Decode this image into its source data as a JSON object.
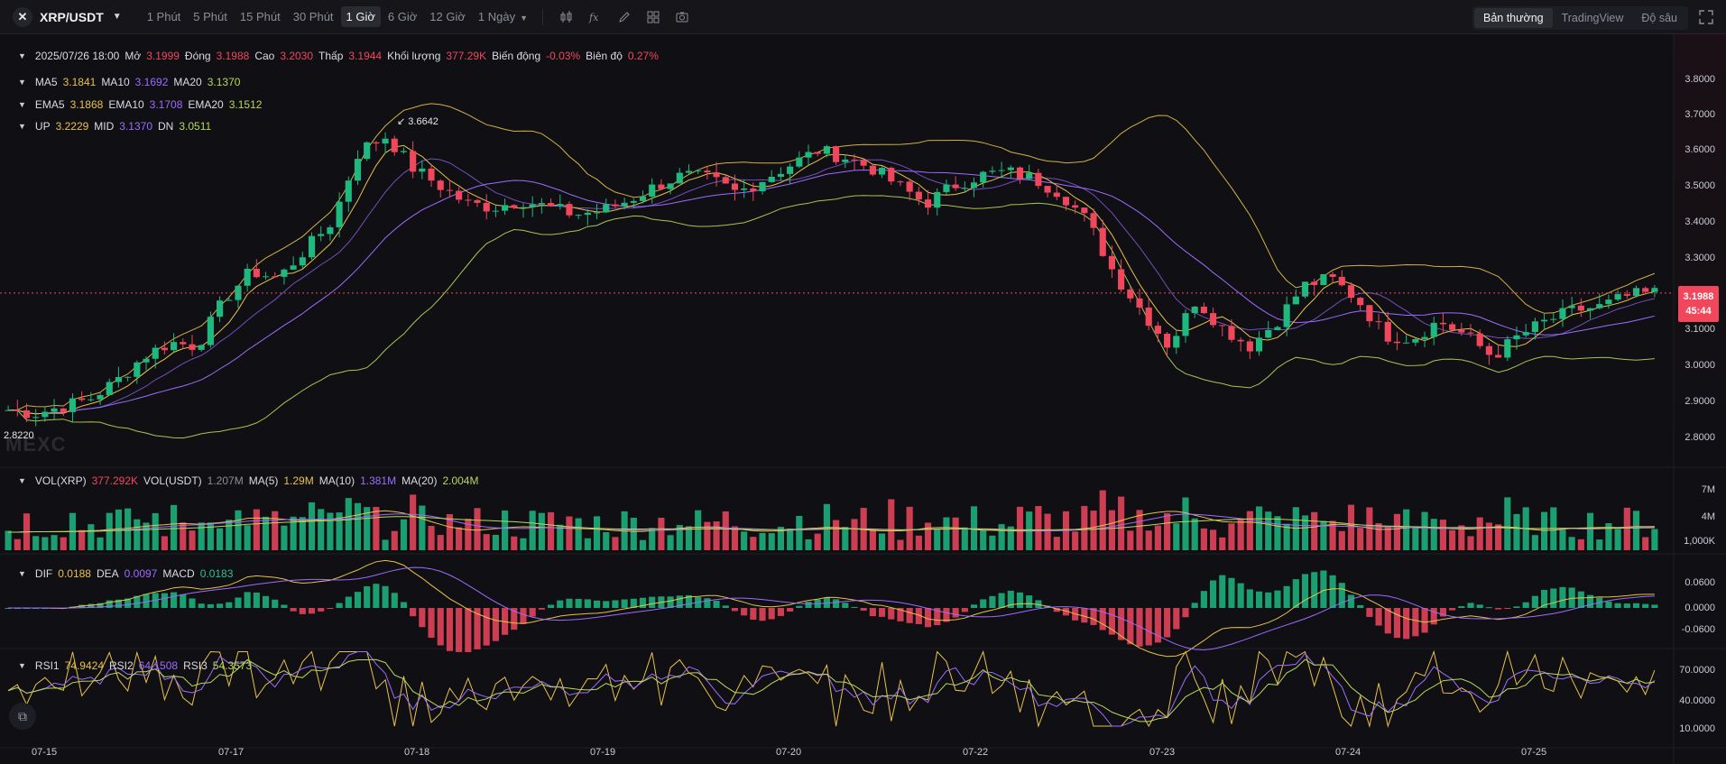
{
  "header": {
    "pair_icon": "x-logo-icon",
    "pair": "XRP/USDT",
    "intervals": [
      {
        "label": "1 Phút"
      },
      {
        "label": "5 Phút"
      },
      {
        "label": "15 Phút"
      },
      {
        "label": "30 Phút"
      },
      {
        "label": "1 Giờ"
      },
      {
        "label": "6 Giờ"
      },
      {
        "label": "12 Giờ"
      },
      {
        "label": "1 Ngày"
      }
    ],
    "active_interval": "1 Giờ",
    "views": [
      "Bản thường",
      "TradingView",
      "Độ sâu"
    ],
    "active_view": "Bản thường"
  },
  "ohlc": {
    "datetime": "2025/07/26 18:00",
    "open_label": "Mở",
    "open": "3.1999",
    "close_label": "Đóng",
    "close": "3.1988",
    "high_label": "Cao",
    "high": "3.2030",
    "low_label": "Thấp",
    "low": "3.1944",
    "volume_label": "Khối lượng",
    "volume": "377.29K",
    "change_label": "Biến động",
    "change": "-0.03%",
    "amplitude_label": "Biên độ",
    "amplitude": "0.27%"
  },
  "ma": {
    "ma5_label": "MA5",
    "ma5": "3.1841",
    "ma10_label": "MA10",
    "ma10": "3.1692",
    "ma20_label": "MA20",
    "ma20": "3.1370"
  },
  "ema": {
    "ema5_label": "EMA5",
    "ema5": "3.1868",
    "ema10_label": "EMA10",
    "ema10": "3.1708",
    "ema20_label": "EMA20",
    "ema20": "3.1512"
  },
  "boll": {
    "up_label": "UP",
    "up": "3.2229",
    "mid_label": "MID",
    "mid": "3.1370",
    "dn_label": "DN",
    "dn": "3.0511"
  },
  "vol": {
    "vol_xrp_label": "VOL(XRP)",
    "vol_xrp": "377.292K",
    "vol_usdt_label": "VOL(USDT)",
    "vol_usdt": "1.207M",
    "ma5_label": "MA(5)",
    "ma5": "1.29M",
    "ma10_label": "MA(10)",
    "ma10": "1.381M",
    "ma20_label": "MA(20)",
    "ma20": "2.004M"
  },
  "macd": {
    "dif_label": "DIF",
    "dif": "0.0188",
    "dea_label": "DEA",
    "dea": "0.0097",
    "macd_label": "MACD",
    "macd": "0.0183"
  },
  "rsi": {
    "rsi1_label": "RSI1",
    "rsi1": "74.9424",
    "rsi2_label": "RSI2",
    "rsi2": "64.1508",
    "rsi3_label": "RSI3",
    "rsi3": "54.3573"
  },
  "price_axis": [
    "3.8000",
    "3.7000",
    "3.6000",
    "3.5000",
    "3.4000",
    "3.3000",
    "3.1000",
    "3.0000",
    "2.9000",
    "2.8000"
  ],
  "last_price": "3.1988",
  "countdown": "45:44",
  "high_annotation": "3.6642",
  "low_annotation": "2.8220",
  "vol_axis": [
    "7M",
    "4M",
    "1,000K"
  ],
  "macd_axis": [
    "0.0600",
    "0.0000",
    "-0.0600"
  ],
  "rsi_axis": [
    "70.0000",
    "40.0000",
    "10.0000"
  ],
  "dates": [
    "07-15",
    "07-17",
    "07-18",
    "07-19",
    "07-20",
    "07-22",
    "07-23",
    "07-24",
    "07-25"
  ],
  "watermark": "MEXC",
  "colors": {
    "up": "#1fb980",
    "down": "#f0475d",
    "ma5": "#e8c14a",
    "ma10": "#9d6bff",
    "ma20": "#b7d85a",
    "bg": "#101014"
  },
  "chart_data": {
    "type": "candlestick",
    "series_anchor_prices": [
      2.87,
      2.86,
      2.88,
      2.9,
      2.95,
      3.02,
      3.06,
      3.05,
      3.18,
      3.26,
      3.24,
      3.32,
      3.4,
      3.6,
      3.64,
      3.55,
      3.5,
      3.45,
      3.44,
      3.46,
      3.44,
      3.42,
      3.43,
      3.46,
      3.5,
      3.53,
      3.52,
      3.48,
      3.52,
      3.56,
      3.6,
      3.58,
      3.55,
      3.5,
      3.45,
      3.5,
      3.53,
      3.54,
      3.52,
      3.48,
      3.4,
      3.25,
      3.15,
      3.05,
      3.18,
      3.1,
      3.05,
      3.12,
      3.22,
      3.24,
      3.18,
      3.08,
      3.07,
      3.12,
      3.08,
      3.02,
      3.08,
      3.12,
      3.15,
      3.16,
      3.19,
      3.2
    ],
    "ylim": [
      2.78,
      3.83
    ]
  }
}
